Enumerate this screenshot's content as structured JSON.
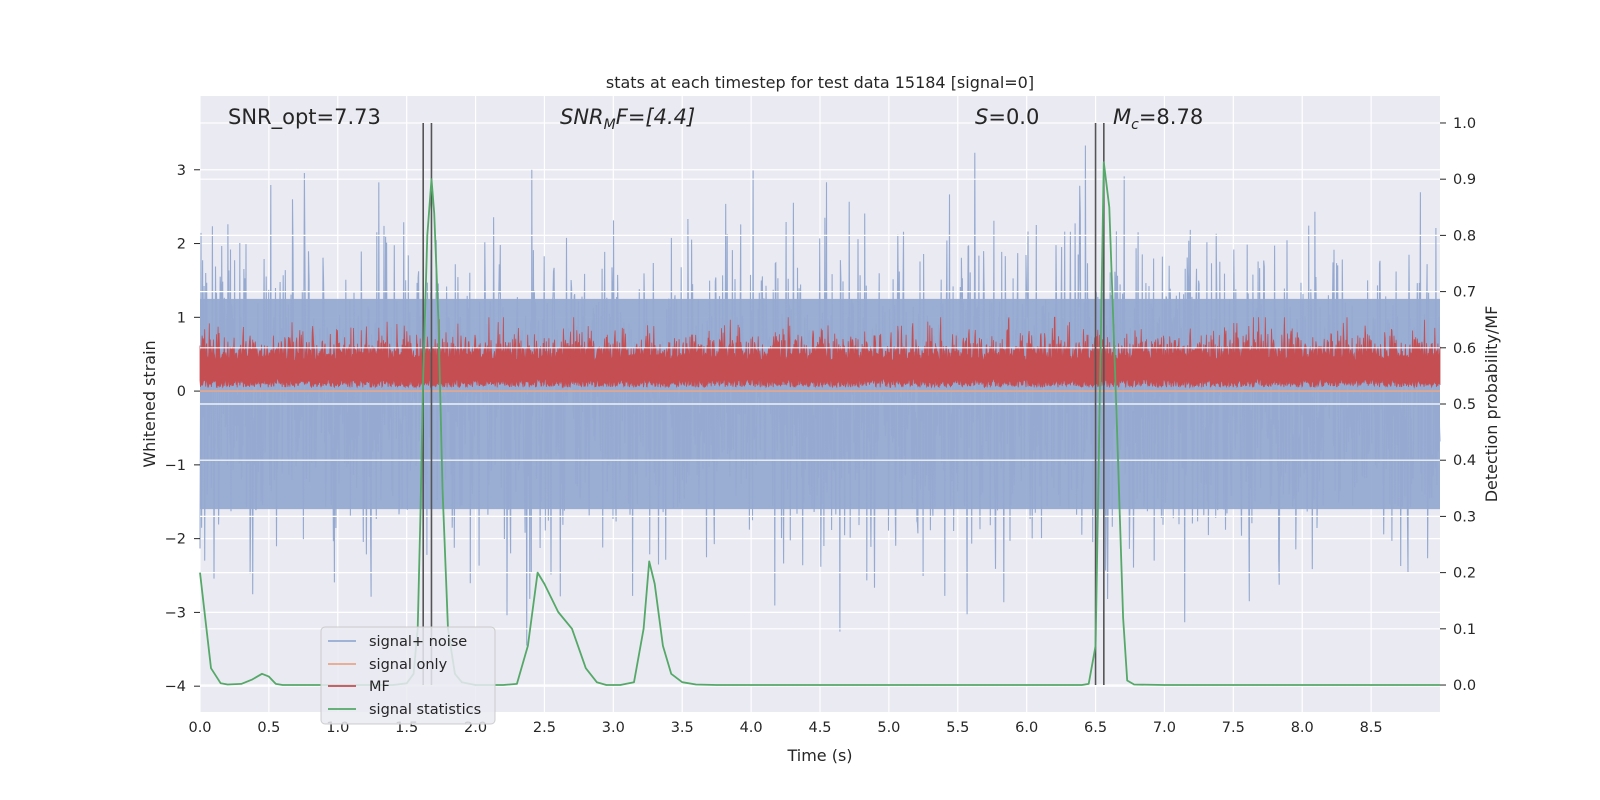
{
  "chart_data": {
    "type": "line",
    "title": "stats at each timestep for test data 15184 [signal=0]",
    "xlabel": "Time (s)",
    "ylabel": "Whitened strain",
    "y2label": "Detection probability/MF",
    "xlim": [
      0,
      9.0
    ],
    "ylim": [
      -4.35,
      4.0
    ],
    "y2lim": [
      -0.048,
      1.048
    ],
    "x_ticks": [
      "0.0",
      "0.5",
      "1.0",
      "1.5",
      "2.0",
      "2.5",
      "3.0",
      "3.5",
      "4.0",
      "4.5",
      "5.0",
      "5.5",
      "6.0",
      "6.5",
      "7.0",
      "7.5",
      "8.0",
      "8.5"
    ],
    "y_ticks": [
      "3",
      "2",
      "1",
      "0",
      "−1",
      "−2",
      "−3",
      "−4"
    ],
    "y2_ticks": [
      "1.0",
      "0.9",
      "0.8",
      "0.7",
      "0.6",
      "0.5",
      "0.4",
      "0.3",
      "0.2",
      "0.1",
      "0.0"
    ],
    "grid": true,
    "legend_position": "lower-left",
    "annotations": {
      "snr_opt": "SNR_opt=7.73",
      "snr_mf_main": "SNR",
      "snr_mf_sub": "M",
      "snr_mf_rest": "F=[4.4]",
      "s_italic": "S",
      "s_rest": "=0.0",
      "mc_main": "M",
      "mc_sub": "c",
      "mc_rest": "=8.78"
    },
    "vertical_lines_x": [
      1.62,
      1.68,
      6.5,
      6.56
    ],
    "series": [
      {
        "name": "signal+ noise",
        "color": "#96aad1",
        "noise_sigma": 1.0,
        "peak_range": [
          -4.0,
          3.35
        ]
      },
      {
        "name": "signal only",
        "color": "#e8a68a",
        "values_constant": 0.0
      },
      {
        "name": "MF",
        "color": "#c44e52",
        "band_range": [
          0.0,
          1.0
        ],
        "typical_range": [
          0.05,
          0.55
        ]
      },
      {
        "name": "signal statistics",
        "color": "#55a868",
        "axis": "right",
        "x": [
          0.0,
          0.08,
          0.15,
          0.2,
          0.3,
          0.38,
          0.45,
          0.5,
          0.55,
          0.6,
          0.7,
          0.8,
          1.0,
          1.2,
          1.4,
          1.5,
          1.55,
          1.58,
          1.6,
          1.62,
          1.65,
          1.68,
          1.7,
          1.73,
          1.76,
          1.8,
          1.85,
          1.9,
          2.0,
          2.1,
          2.2,
          2.3,
          2.38,
          2.45,
          2.5,
          2.6,
          2.7,
          2.8,
          2.88,
          2.95,
          3.05,
          3.15,
          3.22,
          3.26,
          3.3,
          3.36,
          3.42,
          3.5,
          3.6,
          3.75,
          4.0,
          5.0,
          6.0,
          6.4,
          6.45,
          6.5,
          6.53,
          6.56,
          6.6,
          6.65,
          6.7,
          6.73,
          6.78,
          7.0,
          8.0,
          9.0
        ],
        "y": [
          0.2,
          0.03,
          0.003,
          0.001,
          0.002,
          0.01,
          0.02,
          0.015,
          0.002,
          0.0,
          0.0,
          0.0,
          0.0,
          0.0,
          0.0,
          0.003,
          0.02,
          0.1,
          0.3,
          0.55,
          0.8,
          0.9,
          0.84,
          0.65,
          0.35,
          0.1,
          0.02,
          0.005,
          0.0,
          0.0,
          0.0,
          0.002,
          0.07,
          0.2,
          0.18,
          0.13,
          0.1,
          0.03,
          0.005,
          0.0,
          0.0,
          0.005,
          0.1,
          0.22,
          0.18,
          0.07,
          0.02,
          0.005,
          0.001,
          0.0,
          0.0,
          0.0,
          0.0,
          0.0,
          0.002,
          0.07,
          0.5,
          0.93,
          0.85,
          0.5,
          0.12,
          0.008,
          0.001,
          0.0,
          0.0,
          0.0
        ]
      }
    ]
  }
}
